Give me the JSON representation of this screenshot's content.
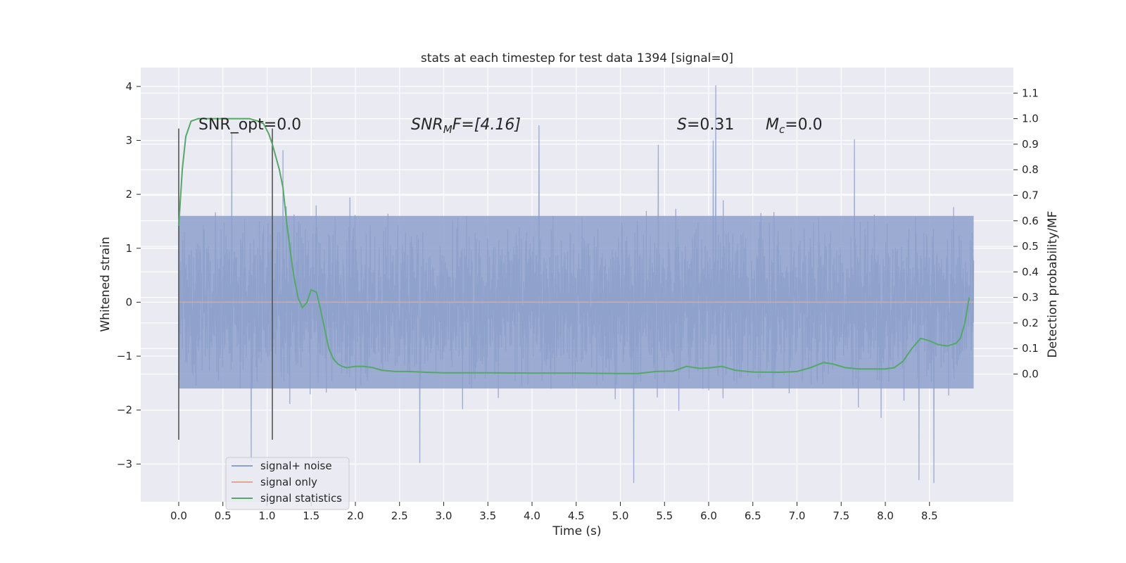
{
  "chart_data": {
    "type": "line",
    "title": "stats at each timestep for test data 1394 [signal=0]",
    "xlabel": "Time (s)",
    "ylabel": "Whitened strain",
    "y2label": "Detection probability/MF",
    "xlim": [
      -0.43,
      9.45
    ],
    "ylim": [
      -3.7,
      4.35
    ],
    "y2lim": [
      -0.5,
      1.2
    ],
    "xticks": [
      "0.0",
      "0.5",
      "1.0",
      "1.5",
      "2.0",
      "2.5",
      "3.0",
      "3.5",
      "4.0",
      "4.5",
      "5.0",
      "5.5",
      "6.0",
      "6.5",
      "7.0",
      "7.5",
      "8.0",
      "8.5"
    ],
    "yticks": [
      "4",
      "3",
      "2",
      "1",
      "0",
      "−1",
      "−2",
      "−3"
    ],
    "y2ticks": [
      "1.1",
      "1.0",
      "0.9",
      "0.8",
      "0.7",
      "0.6",
      "0.5",
      "0.4",
      "0.3",
      "0.2",
      "0.1",
      "0.0"
    ],
    "annotations": {
      "snr_opt": "SNR_opt=0.0",
      "snr_mf": "SNR",
      "snr_mf_sub": "M",
      "snr_mf_rest": "F=[4.16]",
      "s_label": "S",
      "s_value": "=0.31",
      "mc_label": "M",
      "mc_sub": "c",
      "mc_value": "=0.0"
    },
    "window_markers": {
      "x": [
        0.0,
        1.06
      ],
      "y_range": [
        -2.55,
        3.22
      ]
    },
    "series": [
      {
        "name": "signal+ noise",
        "color": "#8da0cb",
        "t_range": [
          0.0,
          9.0
        ],
        "envelope_typical": [
          -1.6,
          1.6
        ],
        "peaks": [
          {
            "x": 6.08,
            "y": 4.02
          },
          {
            "x": 4.08,
            "y": 3.28
          },
          {
            "x": 0.6,
            "y": 3.15
          },
          {
            "x": 1.18,
            "y": 2.82
          },
          {
            "x": 5.43,
            "y": 2.92
          },
          {
            "x": 6.05,
            "y": 3.0
          },
          {
            "x": 7.65,
            "y": 3.02
          },
          {
            "x": 5.15,
            "y": -3.35
          },
          {
            "x": 8.38,
            "y": -3.3
          },
          {
            "x": 8.55,
            "y": -3.35
          },
          {
            "x": 2.73,
            "y": -2.98
          },
          {
            "x": 0.82,
            "y": -2.95
          }
        ]
      },
      {
        "name": "signal only",
        "color": "#e8a48a",
        "value": 0.0
      },
      {
        "name": "signal statistics",
        "color": "#55a868",
        "axis": "right",
        "x": [
          0.0,
          0.04,
          0.08,
          0.14,
          0.22,
          0.3,
          0.4,
          0.5,
          0.6,
          0.7,
          0.8,
          0.9,
          0.96,
          1.02,
          1.06,
          1.1,
          1.14,
          1.18,
          1.22,
          1.26,
          1.3,
          1.35,
          1.4,
          1.45,
          1.5,
          1.56,
          1.6,
          1.65,
          1.7,
          1.75,
          1.8,
          1.85,
          1.9,
          2.0,
          2.1,
          2.2,
          2.3,
          2.45,
          2.6,
          2.8,
          3.0,
          3.5,
          4.0,
          4.5,
          5.0,
          5.2,
          5.4,
          5.6,
          5.75,
          5.9,
          6.0,
          6.15,
          6.3,
          6.5,
          6.8,
          7.0,
          7.15,
          7.3,
          7.4,
          7.55,
          7.7,
          8.0,
          8.1,
          8.2,
          8.3,
          8.4,
          8.5,
          8.6,
          8.7,
          8.8,
          8.85,
          8.9,
          8.95
        ],
        "y": [
          0.58,
          0.8,
          0.93,
          0.99,
          1.0,
          1.0,
          1.0,
          1.0,
          1.0,
          1.0,
          1.0,
          0.99,
          0.98,
          0.94,
          0.9,
          0.85,
          0.8,
          0.73,
          0.6,
          0.49,
          0.39,
          0.3,
          0.26,
          0.28,
          0.33,
          0.32,
          0.26,
          0.18,
          0.1,
          0.06,
          0.04,
          0.03,
          0.025,
          0.03,
          0.03,
          0.025,
          0.015,
          0.01,
          0.01,
          0.007,
          0.005,
          0.005,
          0.004,
          0.004,
          0.002,
          0.002,
          0.01,
          0.012,
          0.03,
          0.022,
          0.024,
          0.03,
          0.015,
          0.008,
          0.007,
          0.01,
          0.025,
          0.045,
          0.04,
          0.025,
          0.02,
          0.02,
          0.025,
          0.05,
          0.1,
          0.14,
          0.13,
          0.115,
          0.11,
          0.12,
          0.14,
          0.2,
          0.3
        ]
      }
    ],
    "legend": {
      "placement": "lower-left"
    }
  }
}
